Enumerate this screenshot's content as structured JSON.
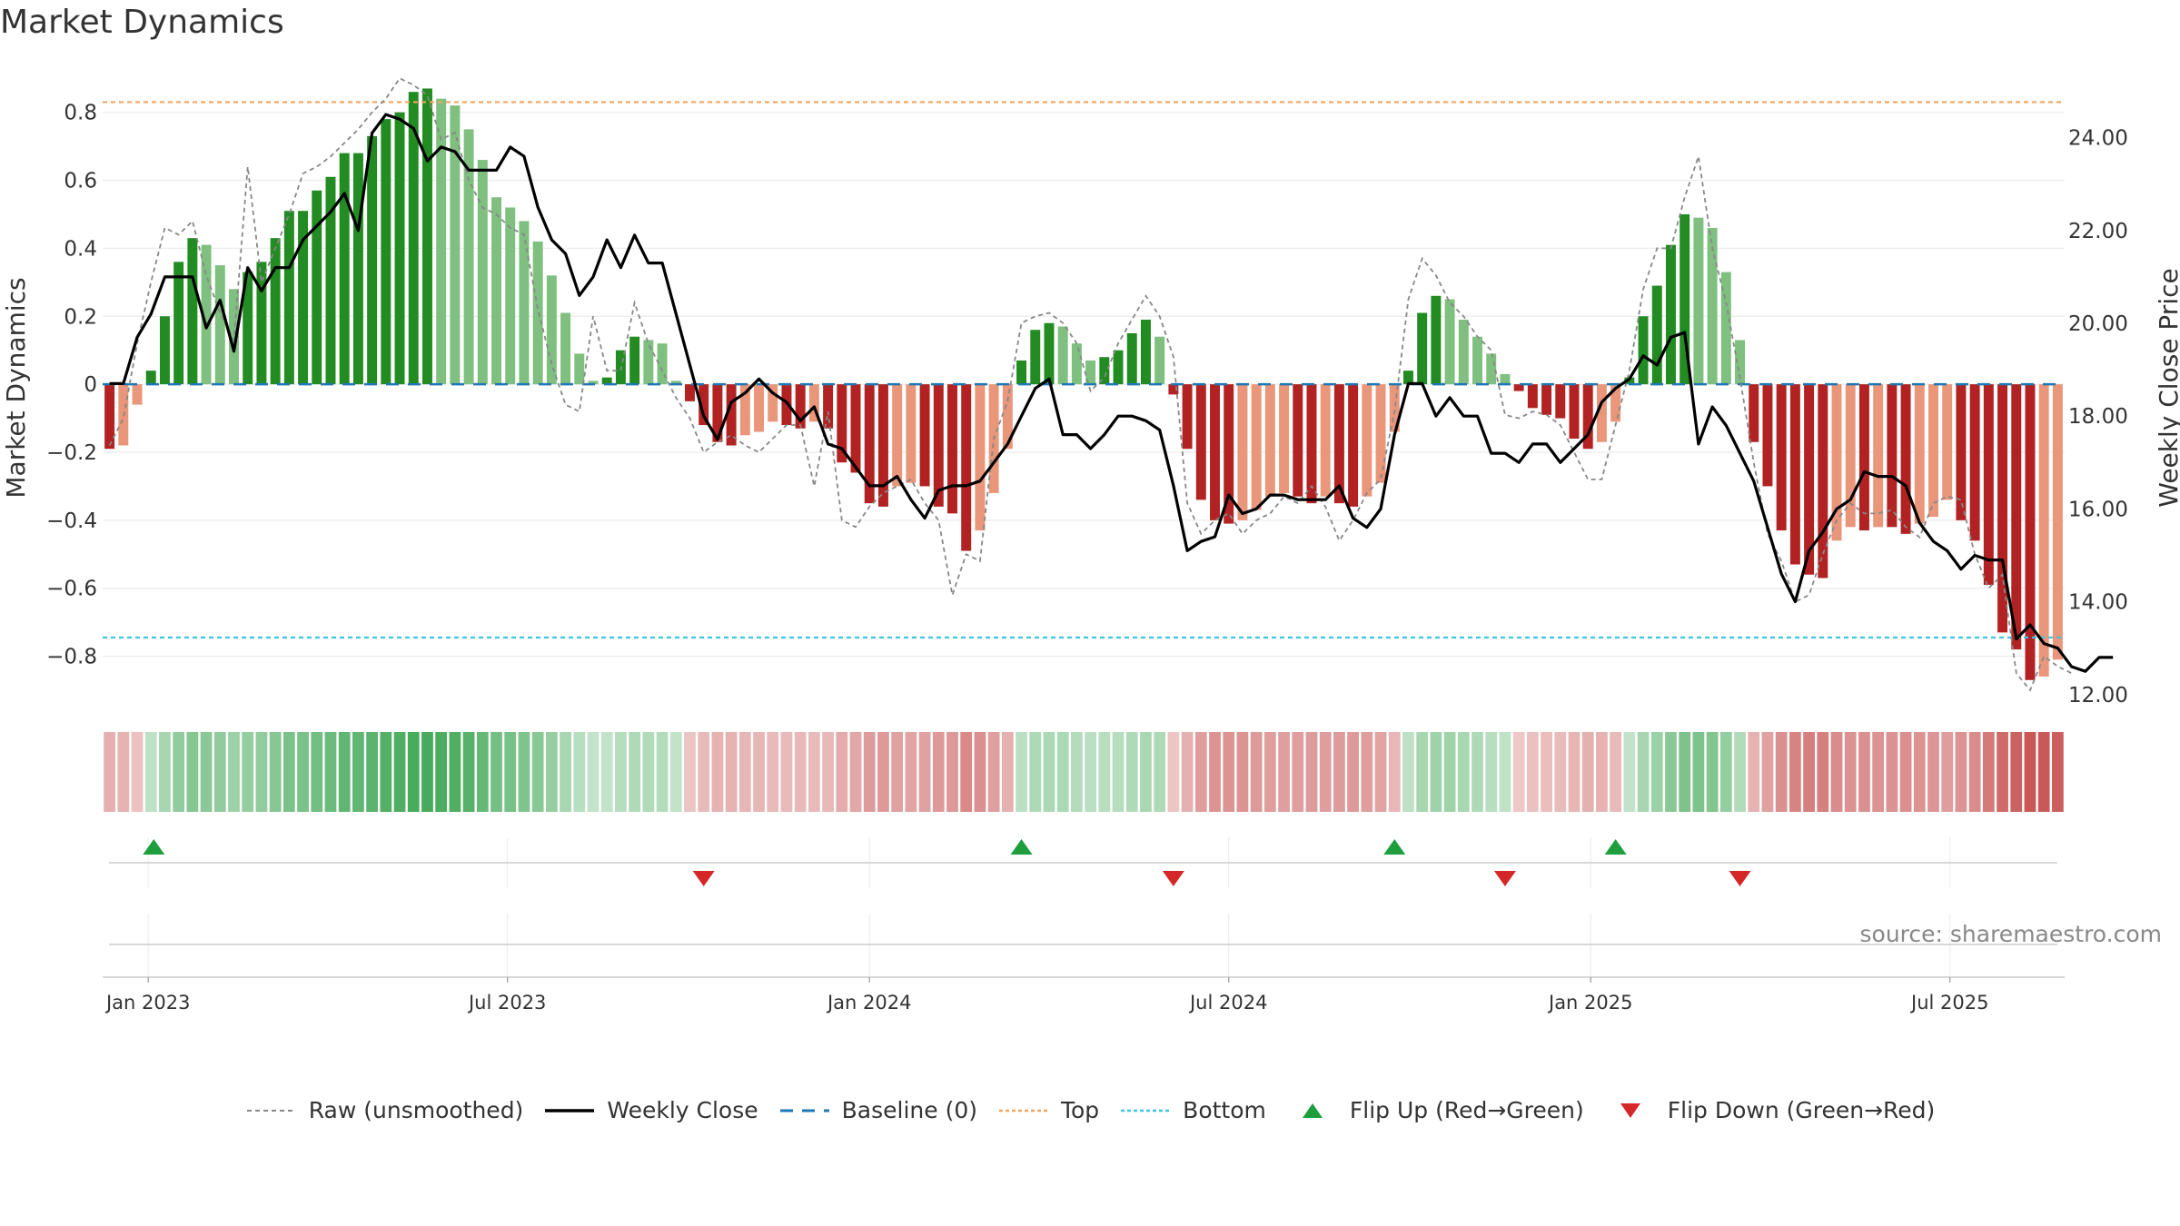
{
  "title": "Market Dynamics",
  "source_note": "source: sharemaestro.com",
  "colors": {
    "bull_strong": "#228b22",
    "bull_weak": "#7fbf7f",
    "bear_strong": "#b22222",
    "bear_weak": "#e9967a",
    "top_line": "#f4a460",
    "bottom_line": "#40c4e0",
    "baseline": "#1f77b4",
    "close_line": "#000000",
    "raw_line": "#888888",
    "flip_up": "#1e9e3c",
    "flip_down": "#d62728"
  },
  "chart_data": {
    "type": "bar",
    "title": "Market Dynamics",
    "y_left_label": "Market Dynamics",
    "y_right_label": "Weekly Close Price",
    "y_left_ticks": [
      "0.8",
      "0.6",
      "0.4",
      "0.2",
      "0",
      "−0.2",
      "−0.4",
      "−0.6",
      "−0.8"
    ],
    "y_left_tick_values": [
      0.8,
      0.6,
      0.4,
      0.2,
      0,
      -0.2,
      -0.4,
      -0.6,
      -0.8
    ],
    "y_right_ticks": [
      "24.00",
      "22.00",
      "20.00",
      "18.00",
      "16.00",
      "14.00",
      "12.00"
    ],
    "y_right_tick_values": [
      24,
      22,
      20,
      18,
      16,
      14,
      12
    ],
    "y_left_range": [
      -0.94,
      0.93
    ],
    "y_right_range": [
      11.8,
      25.5
    ],
    "x_tick_labels": [
      "Jan 2023",
      "Jul 2023",
      "Jan 2024",
      "Jul 2024",
      "Jan 2025",
      "Jul 2025"
    ],
    "x_tick_weeks": [
      2.8,
      28.8,
      55,
      81,
      107.2,
      133.2
    ],
    "top_threshold": 0.83,
    "bottom_threshold": -0.745,
    "baseline": 0,
    "grid": true,
    "legend_position": "bottom",
    "histogram": [
      -0.19,
      -0.18,
      -0.06,
      0.04,
      0.2,
      0.36,
      0.43,
      0.41,
      0.35,
      0.28,
      0.33,
      0.36,
      0.43,
      0.51,
      0.51,
      0.57,
      0.61,
      0.68,
      0.68,
      0.73,
      0.78,
      0.8,
      0.86,
      0.87,
      0.84,
      0.82,
      0.75,
      0.66,
      0.55,
      0.52,
      0.48,
      0.42,
      0.32,
      0.21,
      0.09,
      0.01,
      0.02,
      0.1,
      0.14,
      0.13,
      0.12,
      0.01,
      -0.05,
      -0.12,
      -0.17,
      -0.18,
      -0.15,
      -0.14,
      -0.11,
      -0.12,
      -0.13,
      -0.11,
      -0.13,
      -0.23,
      -0.26,
      -0.35,
      -0.36,
      -0.3,
      -0.29,
      -0.3,
      -0.36,
      -0.38,
      -0.49,
      -0.43,
      -0.32,
      -0.19,
      0.07,
      0.16,
      0.18,
      0.17,
      0.12,
      0.07,
      0.08,
      0.1,
      0.15,
      0.19,
      0.14,
      -0.03,
      -0.19,
      -0.34,
      -0.4,
      -0.41,
      -0.4,
      -0.37,
      -0.33,
      -0.32,
      -0.33,
      -0.35,
      -0.33,
      -0.35,
      -0.36,
      -0.33,
      -0.29,
      -0.14,
      0.04,
      0.21,
      0.26,
      0.25,
      0.19,
      0.14,
      0.09,
      0.03,
      -0.02,
      -0.07,
      -0.09,
      -0.1,
      -0.16,
      -0.19,
      -0.17,
      -0.11,
      0.02,
      0.2,
      0.29,
      0.41,
      0.5,
      0.49,
      0.46,
      0.33,
      0.13,
      -0.17,
      -0.3,
      -0.43,
      -0.53,
      -0.56,
      -0.57,
      -0.46,
      -0.42,
      -0.43,
      -0.42,
      -0.42,
      -0.44,
      -0.41,
      -0.39,
      -0.34,
      -0.4,
      -0.46,
      -0.59,
      -0.73,
      -0.78,
      -0.87,
      -0.86,
      -0.81
    ],
    "weekly_close": [
      18.7,
      18.7,
      19.7,
      20.2,
      21.0,
      21.0,
      21.0,
      19.9,
      20.5,
      19.4,
      21.2,
      20.7,
      21.2,
      21.2,
      21.8,
      22.1,
      22.4,
      22.8,
      22.0,
      24.1,
      24.5,
      24.4,
      24.2,
      23.5,
      23.8,
      23.7,
      23.3,
      23.3,
      23.3,
      23.8,
      23.6,
      22.5,
      21.8,
      21.5,
      20.6,
      21.0,
      21.8,
      21.2,
      21.9,
      21.3,
      21.3,
      20.2,
      19.1,
      18.0,
      17.5,
      18.3,
      18.5,
      18.8,
      18.5,
      18.3,
      17.9,
      18.2,
      17.4,
      17.3,
      16.9,
      16.5,
      16.5,
      16.7,
      16.2,
      15.8,
      16.4,
      16.5,
      16.5,
      16.6,
      17.0,
      17.4,
      18.0,
      18.6,
      18.8,
      17.6,
      17.6,
      17.3,
      17.6,
      18.0,
      18.0,
      17.9,
      17.7,
      16.5,
      15.1,
      15.3,
      15.4,
      16.3,
      15.9,
      16.0,
      16.3,
      16.3,
      16.2,
      16.2,
      16.2,
      16.5,
      15.8,
      15.6,
      16.0,
      17.6,
      18.7,
      18.7,
      18.0,
      18.4,
      18.0,
      18.0,
      17.2,
      17.2,
      17.0,
      17.4,
      17.4,
      17.0,
      17.3,
      17.6,
      18.3,
      18.6,
      18.8,
      19.3,
      19.1,
      19.7,
      19.8,
      17.4,
      18.2,
      17.8,
      17.2,
      16.6,
      15.6,
      14.6,
      14.0,
      15.1,
      15.5,
      16.0,
      16.2,
      16.8,
      16.7,
      16.7,
      16.5,
      15.7,
      15.3,
      15.1,
      14.7,
      15.0,
      14.9,
      14.9,
      13.2,
      13.5,
      13.1,
      13.0,
      12.6,
      12.5,
      12.8,
      12.8
    ],
    "raw_unsmoothed": [
      -0.18,
      -0.1,
      0.12,
      0.3,
      0.46,
      0.44,
      0.48,
      0.32,
      0.21,
      0.13,
      0.64,
      0.3,
      0.4,
      0.5,
      0.62,
      0.64,
      0.67,
      0.71,
      0.75,
      0.8,
      0.84,
      0.9,
      0.88,
      0.85,
      0.72,
      0.74,
      0.6,
      0.52,
      0.5,
      0.46,
      0.44,
      0.22,
      0.06,
      -0.06,
      -0.08,
      0.2,
      0.04,
      0.04,
      0.24,
      0.12,
      0.04,
      -0.04,
      -0.1,
      -0.2,
      -0.17,
      -0.15,
      -0.18,
      -0.2,
      -0.16,
      -0.12,
      -0.12,
      -0.3,
      -0.08,
      -0.4,
      -0.42,
      -0.36,
      -0.32,
      -0.3,
      -0.28,
      -0.35,
      -0.4,
      -0.62,
      -0.5,
      -0.52,
      -0.16,
      -0.05,
      0.18,
      0.2,
      0.21,
      0.18,
      0.12,
      -0.02,
      0.02,
      0.12,
      0.19,
      0.26,
      0.2,
      0.08,
      -0.35,
      -0.44,
      -0.4,
      -0.38,
      -0.44,
      -0.4,
      -0.38,
      -0.33,
      -0.35,
      -0.3,
      -0.36,
      -0.46,
      -0.4,
      -0.32,
      -0.28,
      -0.08,
      0.25,
      0.37,
      0.32,
      0.24,
      0.2,
      0.14,
      0.1,
      -0.09,
      -0.1,
      -0.08,
      -0.09,
      -0.12,
      -0.2,
      -0.28,
      -0.28,
      -0.12,
      0.04,
      0.28,
      0.4,
      0.4,
      0.55,
      0.67,
      0.4,
      0.24,
      0.02,
      -0.23,
      -0.44,
      -0.52,
      -0.64,
      -0.62,
      -0.5,
      -0.4,
      -0.35,
      -0.38,
      -0.38,
      -0.37,
      -0.42,
      -0.45,
      -0.35,
      -0.33,
      -0.34,
      -0.5,
      -0.6,
      -0.56,
      -0.85,
      -0.9,
      -0.8,
      -0.83,
      -0.85
    ],
    "flip_up_weeks": [
      3.2,
      66,
      93,
      109
    ],
    "flip_down_weeks": [
      43,
      77,
      101,
      118
    ],
    "legend": [
      "Raw (unsmoothed)",
      "Weekly Close",
      "Baseline (0)",
      "Top",
      "Bottom",
      "Flip Up (Red→Green)",
      "Flip Down (Green→Red)"
    ]
  }
}
